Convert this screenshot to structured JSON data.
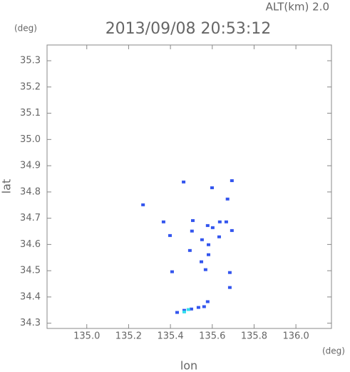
{
  "chart_data": {
    "type": "scatter",
    "title": "2013/09/08 20:53:12",
    "subtitle": "ALT(km) 2.0",
    "y_unit": "(deg)",
    "x_unit": "(deg)",
    "x_label": "lon",
    "y_label": "lat",
    "xlim": [
      134.81,
      136.17
    ],
    "ylim": [
      34.28,
      35.36
    ],
    "xticks": [
      {
        "value": 135,
        "label": "135.0"
      },
      {
        "value": 135.2,
        "label": "135.2"
      },
      {
        "value": 135.4,
        "label": "135.4"
      },
      {
        "value": 135.6,
        "label": "135.6"
      },
      {
        "value": 135.8,
        "label": "135.8"
      },
      {
        "value": 136,
        "label": "136.0"
      }
    ],
    "yticks": [
      34.3,
      34.4,
      34.5,
      34.6,
      34.7,
      34.8,
      34.9,
      {
        "value": 35,
        "label": "35.0"
      },
      35.1,
      35.2,
      35.3
    ],
    "series": [
      {
        "color": "#3355ee",
        "x": [
          135.269,
          135.463,
          135.599,
          135.673,
          135.694,
          135.367,
          135.398,
          135.507,
          135.503,
          135.578,
          135.602,
          135.636,
          135.667,
          135.694,
          135.633,
          135.551,
          135.582,
          135.493,
          135.582,
          135.548,
          135.568,
          135.408,
          135.684,
          135.684,
          135.578,
          135.432,
          135.466,
          135.5,
          135.534,
          135.561
        ],
        "y": [
          34.751,
          34.838,
          34.816,
          34.773,
          34.843,
          34.686,
          34.634,
          34.691,
          34.651,
          34.672,
          34.664,
          34.686,
          34.686,
          34.653,
          34.629,
          34.618,
          34.599,
          34.577,
          34.561,
          34.534,
          34.504,
          34.496,
          34.493,
          34.436,
          34.382,
          34.341,
          34.349,
          34.354,
          34.36,
          34.363
        ]
      },
      {
        "color": "#33ddee",
        "x": [
          135.466,
          135.486
        ],
        "y": [
          34.343,
          34.352
        ]
      }
    ]
  }
}
